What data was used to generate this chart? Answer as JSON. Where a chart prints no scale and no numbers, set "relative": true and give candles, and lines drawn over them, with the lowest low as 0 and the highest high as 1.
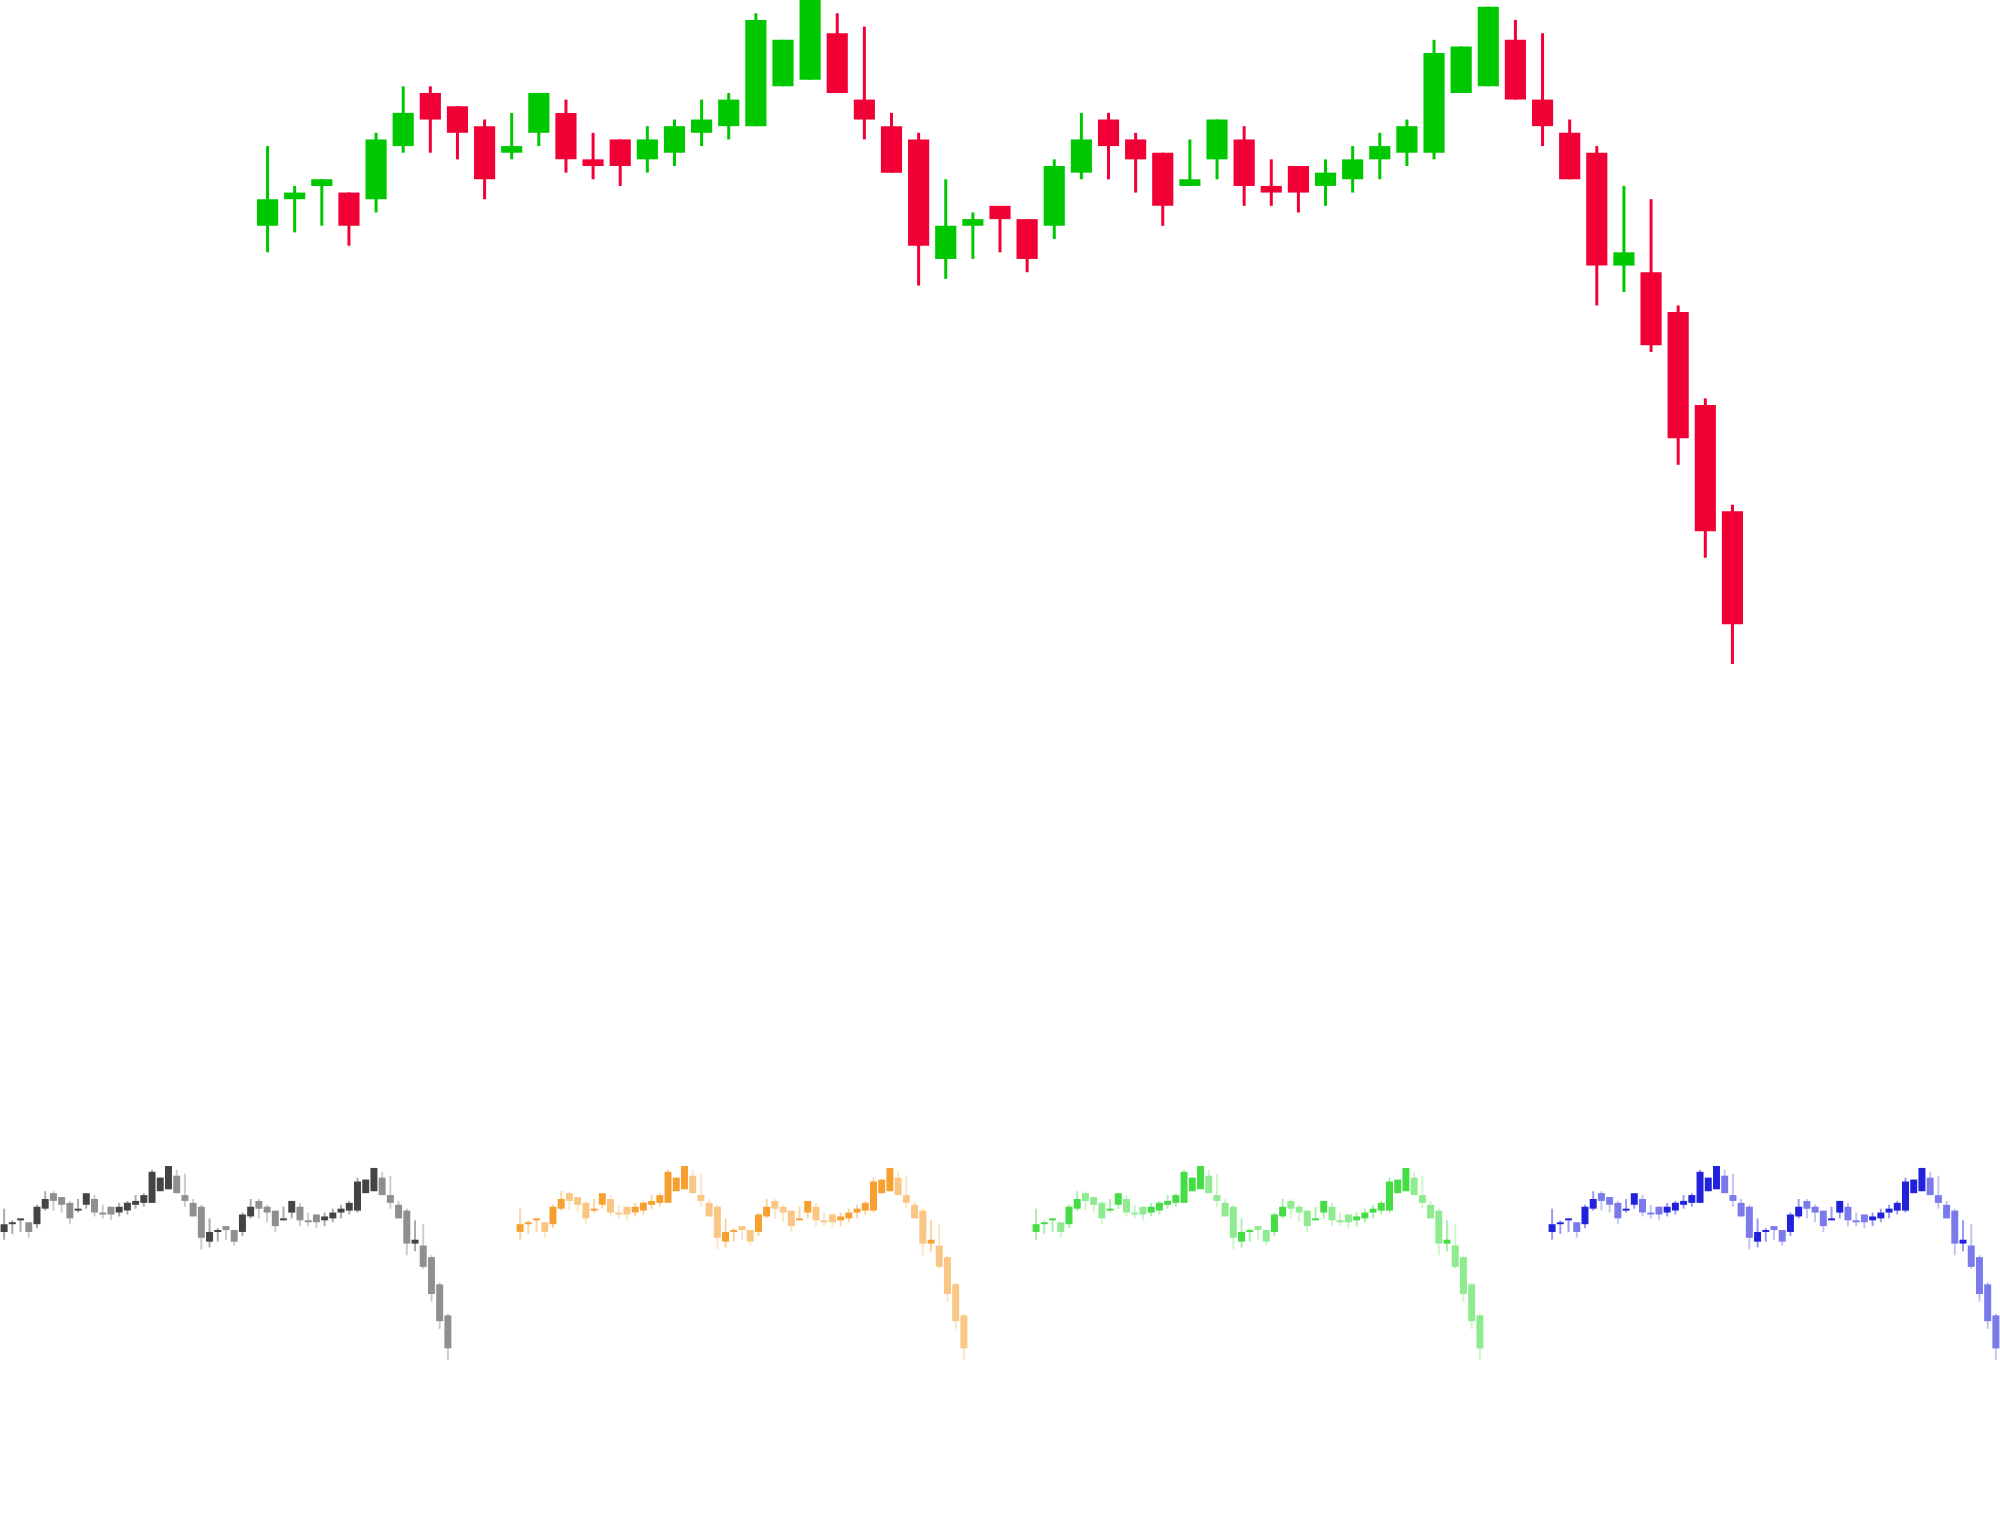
{
  "chart_data": [
    {
      "type": "candlestick",
      "relative": true,
      "categories": [
        null,
        null,
        null,
        null,
        null,
        null,
        null,
        null,
        null,
        null,
        null,
        null,
        null,
        null,
        null,
        null,
        null,
        null,
        null,
        null,
        null,
        null,
        null,
        null,
        null,
        null,
        null,
        null,
        null,
        null,
        null,
        null,
        null,
        null,
        null,
        null,
        null,
        null,
        null,
        null,
        null,
        null,
        null,
        null,
        null,
        null,
        null,
        null,
        null,
        null,
        null,
        null,
        null,
        null,
        null
      ],
      "ohlc": [
        [
          0.66,
          0.78,
          0.62,
          0.7
        ],
        [
          0.7,
          0.72,
          0.65,
          0.71
        ],
        [
          0.72,
          0.73,
          0.66,
          0.73
        ],
        [
          0.71,
          0.71,
          0.63,
          0.66
        ],
        [
          0.7,
          0.8,
          0.68,
          0.79
        ],
        [
          0.78,
          0.87,
          0.77,
          0.83
        ],
        [
          0.86,
          0.87,
          0.77,
          0.82
        ],
        [
          0.84,
          0.84,
          0.76,
          0.8
        ],
        [
          0.81,
          0.82,
          0.7,
          0.73
        ],
        [
          0.77,
          0.83,
          0.76,
          0.78
        ],
        [
          0.8,
          0.86,
          0.78,
          0.86
        ],
        [
          0.83,
          0.85,
          0.74,
          0.76
        ],
        [
          0.76,
          0.8,
          0.73,
          0.75
        ],
        [
          0.79,
          0.79,
          0.72,
          0.75
        ],
        [
          0.76,
          0.81,
          0.74,
          0.79
        ],
        [
          0.77,
          0.82,
          0.75,
          0.81
        ],
        [
          0.8,
          0.85,
          0.78,
          0.82
        ],
        [
          0.81,
          0.86,
          0.79,
          0.85
        ],
        [
          0.81,
          0.98,
          0.81,
          0.97
        ],
        [
          0.87,
          0.94,
          0.87,
          0.94
        ],
        [
          0.88,
          1,
          0.88,
          1
        ],
        [
          0.95,
          0.98,
          0.86,
          0.86
        ],
        [
          0.85,
          0.96,
          0.79,
          0.82
        ],
        [
          0.81,
          0.83,
          0.74,
          0.74
        ],
        [
          0.79,
          0.8,
          0.57,
          0.63
        ],
        [
          0.61,
          0.73,
          0.58,
          0.66
        ],
        [
          0.66,
          0.68,
          0.61,
          0.67
        ],
        [
          0.69,
          0.69,
          0.62,
          0.67
        ],
        [
          0.67,
          0.67,
          0.59,
          0.61
        ],
        [
          0.66,
          0.76,
          0.64,
          0.75
        ],
        [
          0.74,
          0.83,
          0.73,
          0.79
        ],
        [
          0.82,
          0.83,
          0.73,
          0.78
        ],
        [
          0.79,
          0.8,
          0.71,
          0.76
        ],
        [
          0.77,
          0.77,
          0.66,
          0.69
        ],
        [
          0.72,
          0.79,
          0.72,
          0.73
        ],
        [
          0.76,
          0.82,
          0.73,
          0.82
        ],
        [
          0.79,
          0.81,
          0.69,
          0.72
        ],
        [
          0.72,
          0.76,
          0.69,
          0.71
        ],
        [
          0.75,
          0.75,
          0.68,
          0.71
        ],
        [
          0.72,
          0.76,
          0.69,
          0.74
        ],
        [
          0.73,
          0.78,
          0.71,
          0.76
        ],
        [
          0.76,
          0.8,
          0.73,
          0.78
        ],
        [
          0.77,
          0.82,
          0.75,
          0.81
        ],
        [
          0.77,
          0.94,
          0.76,
          0.92
        ],
        [
          0.86,
          0.93,
          0.86,
          0.93
        ],
        [
          0.87,
          0.99,
          0.87,
          0.99
        ],
        [
          0.94,
          0.97,
          0.85,
          0.85
        ],
        [
          0.85,
          0.95,
          0.78,
          0.81
        ],
        [
          0.8,
          0.82,
          0.73,
          0.73
        ],
        [
          0.77,
          0.78,
          0.54,
          0.6
        ],
        [
          0.6,
          0.72,
          0.56,
          0.62
        ],
        [
          0.59,
          0.7,
          0.47,
          0.48
        ],
        [
          0.53,
          0.54,
          0.3,
          0.34
        ],
        [
          0.39,
          0.4,
          0.16,
          0.2
        ],
        [
          0.23,
          0.24,
          0,
          0.06
        ]
      ],
      "colors": [
        "#00c800",
        "#00c800",
        "#00c800",
        "#f00034",
        "#00c800",
        "#00c800",
        "#f00034",
        "#f00034",
        "#f00034",
        "#00c800",
        "#00c800",
        "#f00034",
        "#f00034",
        "#f00034",
        "#00c800",
        "#00c800",
        "#00c800",
        "#00c800",
        "#00c800",
        "#00c800",
        "#00c800",
        "#f00034",
        "#f00034",
        "#f00034",
        "#f00034",
        "#00c800",
        "#00c800",
        "#f00034",
        "#f00034",
        "#00c800",
        "#00c800",
        "#f00034",
        "#f00034",
        "#f00034",
        "#00c800",
        "#00c800",
        "#f00034",
        "#f00034",
        "#f00034",
        "#00c800",
        "#00c800",
        "#00c800",
        "#00c800",
        "#00c800",
        "#00c800",
        "#00c800",
        "#f00034",
        "#f00034",
        "#f00034",
        "#f00034",
        "#00c800",
        "#f00034",
        "#f00034",
        "#f00034",
        "#f00034"
      ]
    },
    {
      "type": "candlestick",
      "relative": true,
      "categories": [
        null,
        null,
        null,
        null,
        null,
        null,
        null,
        null,
        null,
        null,
        null,
        null,
        null,
        null,
        null,
        null,
        null,
        null,
        null,
        null,
        null,
        null,
        null,
        null,
        null,
        null,
        null,
        null,
        null,
        null,
        null,
        null,
        null,
        null,
        null,
        null,
        null,
        null,
        null,
        null,
        null,
        null,
        null,
        null,
        null,
        null,
        null,
        null,
        null,
        null,
        null,
        null,
        null,
        null,
        null
      ],
      "ohlc": [
        [
          0.66,
          0.78,
          0.62,
          0.7
        ],
        [
          0.7,
          0.72,
          0.65,
          0.71
        ],
        [
          0.72,
          0.73,
          0.66,
          0.73
        ],
        [
          0.71,
          0.71,
          0.63,
          0.66
        ],
        [
          0.7,
          0.8,
          0.68,
          0.79
        ],
        [
          0.78,
          0.87,
          0.77,
          0.83
        ],
        [
          0.86,
          0.87,
          0.77,
          0.82
        ],
        [
          0.84,
          0.84,
          0.76,
          0.8
        ],
        [
          0.81,
          0.82,
          0.7,
          0.73
        ],
        [
          0.77,
          0.83,
          0.76,
          0.78
        ],
        [
          0.8,
          0.86,
          0.78,
          0.86
        ],
        [
          0.83,
          0.85,
          0.74,
          0.76
        ],
        [
          0.76,
          0.8,
          0.73,
          0.75
        ],
        [
          0.79,
          0.79,
          0.72,
          0.75
        ],
        [
          0.76,
          0.81,
          0.74,
          0.79
        ],
        [
          0.77,
          0.82,
          0.75,
          0.81
        ],
        [
          0.8,
          0.85,
          0.78,
          0.82
        ],
        [
          0.81,
          0.86,
          0.79,
          0.85
        ],
        [
          0.81,
          0.98,
          0.81,
          0.97
        ],
        [
          0.87,
          0.94,
          0.87,
          0.94
        ],
        [
          0.88,
          1,
          0.88,
          1
        ],
        [
          0.95,
          0.98,
          0.86,
          0.86
        ],
        [
          0.85,
          0.96,
          0.79,
          0.82
        ],
        [
          0.81,
          0.83,
          0.74,
          0.74
        ],
        [
          0.79,
          0.8,
          0.57,
          0.63
        ],
        [
          0.61,
          0.73,
          0.58,
          0.66
        ],
        [
          0.66,
          0.68,
          0.61,
          0.67
        ],
        [
          0.69,
          0.69,
          0.62,
          0.67
        ],
        [
          0.67,
          0.67,
          0.59,
          0.61
        ],
        [
          0.66,
          0.76,
          0.64,
          0.75
        ],
        [
          0.74,
          0.83,
          0.73,
          0.79
        ],
        [
          0.82,
          0.83,
          0.73,
          0.78
        ],
        [
          0.79,
          0.8,
          0.71,
          0.76
        ],
        [
          0.77,
          0.77,
          0.66,
          0.69
        ],
        [
          0.72,
          0.79,
          0.72,
          0.73
        ],
        [
          0.76,
          0.82,
          0.73,
          0.82
        ],
        [
          0.79,
          0.81,
          0.69,
          0.72
        ],
        [
          0.72,
          0.76,
          0.69,
          0.71
        ],
        [
          0.75,
          0.75,
          0.68,
          0.71
        ],
        [
          0.72,
          0.76,
          0.69,
          0.74
        ],
        [
          0.73,
          0.78,
          0.71,
          0.76
        ],
        [
          0.76,
          0.8,
          0.73,
          0.78
        ],
        [
          0.77,
          0.82,
          0.75,
          0.81
        ],
        [
          0.77,
          0.94,
          0.76,
          0.92
        ],
        [
          0.86,
          0.93,
          0.86,
          0.93
        ],
        [
          0.87,
          0.99,
          0.87,
          0.99
        ],
        [
          0.94,
          0.97,
          0.85,
          0.85
        ],
        [
          0.85,
          0.95,
          0.78,
          0.81
        ],
        [
          0.8,
          0.82,
          0.73,
          0.73
        ],
        [
          0.77,
          0.78,
          0.54,
          0.6
        ],
        [
          0.6,
          0.72,
          0.56,
          0.62
        ],
        [
          0.59,
          0.7,
          0.47,
          0.48
        ],
        [
          0.53,
          0.54,
          0.3,
          0.34
        ],
        [
          0.39,
          0.4,
          0.16,
          0.2
        ],
        [
          0.23,
          0.24,
          0,
          0.06
        ]
      ],
      "colors": [
        "#444444",
        "#444444",
        "#444444",
        "#8f8f8f",
        "#444444",
        "#444444",
        "#8f8f8f",
        "#8f8f8f",
        "#8f8f8f",
        "#444444",
        "#444444",
        "#8f8f8f",
        "#8f8f8f",
        "#8f8f8f",
        "#444444",
        "#444444",
        "#444444",
        "#444444",
        "#444444",
        "#444444",
        "#444444",
        "#8f8f8f",
        "#8f8f8f",
        "#8f8f8f",
        "#8f8f8f",
        "#444444",
        "#444444",
        "#8f8f8f",
        "#8f8f8f",
        "#444444",
        "#444444",
        "#8f8f8f",
        "#8f8f8f",
        "#8f8f8f",
        "#444444",
        "#444444",
        "#8f8f8f",
        "#8f8f8f",
        "#8f8f8f",
        "#444444",
        "#444444",
        "#444444",
        "#444444",
        "#444444",
        "#444444",
        "#444444",
        "#8f8f8f",
        "#8f8f8f",
        "#8f8f8f",
        "#8f8f8f",
        "#444444",
        "#8f8f8f",
        "#8f8f8f",
        "#8f8f8f",
        "#8f8f8f"
      ]
    },
    {
      "type": "candlestick",
      "relative": true,
      "categories": [
        null,
        null,
        null,
        null,
        null,
        null,
        null,
        null,
        null,
        null,
        null,
        null,
        null,
        null,
        null,
        null,
        null,
        null,
        null,
        null,
        null,
        null,
        null,
        null,
        null,
        null,
        null,
        null,
        null,
        null,
        null,
        null,
        null,
        null,
        null,
        null,
        null,
        null,
        null,
        null,
        null,
        null,
        null,
        null,
        null,
        null,
        null,
        null,
        null,
        null,
        null,
        null,
        null,
        null,
        null
      ],
      "ohlc": [
        [
          0.66,
          0.78,
          0.62,
          0.7
        ],
        [
          0.7,
          0.72,
          0.65,
          0.71
        ],
        [
          0.72,
          0.73,
          0.66,
          0.73
        ],
        [
          0.71,
          0.71,
          0.63,
          0.66
        ],
        [
          0.7,
          0.8,
          0.68,
          0.79
        ],
        [
          0.78,
          0.87,
          0.77,
          0.83
        ],
        [
          0.86,
          0.87,
          0.77,
          0.82
        ],
        [
          0.84,
          0.84,
          0.76,
          0.8
        ],
        [
          0.81,
          0.82,
          0.7,
          0.73
        ],
        [
          0.77,
          0.83,
          0.76,
          0.78
        ],
        [
          0.8,
          0.86,
          0.78,
          0.86
        ],
        [
          0.83,
          0.85,
          0.74,
          0.76
        ],
        [
          0.76,
          0.8,
          0.73,
          0.75
        ],
        [
          0.79,
          0.79,
          0.72,
          0.75
        ],
        [
          0.76,
          0.81,
          0.74,
          0.79
        ],
        [
          0.77,
          0.82,
          0.75,
          0.81
        ],
        [
          0.8,
          0.85,
          0.78,
          0.82
        ],
        [
          0.81,
          0.86,
          0.79,
          0.85
        ],
        [
          0.81,
          0.98,
          0.81,
          0.97
        ],
        [
          0.87,
          0.94,
          0.87,
          0.94
        ],
        [
          0.88,
          1,
          0.88,
          1
        ],
        [
          0.95,
          0.98,
          0.86,
          0.86
        ],
        [
          0.85,
          0.96,
          0.79,
          0.82
        ],
        [
          0.81,
          0.83,
          0.74,
          0.74
        ],
        [
          0.79,
          0.8,
          0.57,
          0.63
        ],
        [
          0.61,
          0.73,
          0.58,
          0.66
        ],
        [
          0.66,
          0.68,
          0.61,
          0.67
        ],
        [
          0.69,
          0.69,
          0.62,
          0.67
        ],
        [
          0.67,
          0.67,
          0.59,
          0.61
        ],
        [
          0.66,
          0.76,
          0.64,
          0.75
        ],
        [
          0.74,
          0.83,
          0.73,
          0.79
        ],
        [
          0.82,
          0.83,
          0.73,
          0.78
        ],
        [
          0.79,
          0.8,
          0.71,
          0.76
        ],
        [
          0.77,
          0.77,
          0.66,
          0.69
        ],
        [
          0.72,
          0.79,
          0.72,
          0.73
        ],
        [
          0.76,
          0.82,
          0.73,
          0.82
        ],
        [
          0.79,
          0.81,
          0.69,
          0.72
        ],
        [
          0.72,
          0.76,
          0.69,
          0.71
        ],
        [
          0.75,
          0.75,
          0.68,
          0.71
        ],
        [
          0.72,
          0.76,
          0.69,
          0.74
        ],
        [
          0.73,
          0.78,
          0.71,
          0.76
        ],
        [
          0.76,
          0.8,
          0.73,
          0.78
        ],
        [
          0.77,
          0.82,
          0.75,
          0.81
        ],
        [
          0.77,
          0.94,
          0.76,
          0.92
        ],
        [
          0.86,
          0.93,
          0.86,
          0.93
        ],
        [
          0.87,
          0.99,
          0.87,
          0.99
        ],
        [
          0.94,
          0.97,
          0.85,
          0.85
        ],
        [
          0.85,
          0.95,
          0.78,
          0.81
        ],
        [
          0.8,
          0.82,
          0.73,
          0.73
        ],
        [
          0.77,
          0.78,
          0.54,
          0.6
        ],
        [
          0.6,
          0.72,
          0.56,
          0.62
        ],
        [
          0.59,
          0.7,
          0.47,
          0.48
        ],
        [
          0.53,
          0.54,
          0.3,
          0.34
        ],
        [
          0.39,
          0.4,
          0.16,
          0.2
        ],
        [
          0.23,
          0.24,
          0,
          0.06
        ]
      ],
      "colors": [
        "#f7a030",
        "#f7a030",
        "#f7a030",
        "#fac683",
        "#f7a030",
        "#f7a030",
        "#fac683",
        "#fac683",
        "#fac683",
        "#f7a030",
        "#f7a030",
        "#fac683",
        "#fac683",
        "#fac683",
        "#f7a030",
        "#f7a030",
        "#f7a030",
        "#f7a030",
        "#f7a030",
        "#f7a030",
        "#f7a030",
        "#fac683",
        "#fac683",
        "#fac683",
        "#fac683",
        "#f7a030",
        "#f7a030",
        "#fac683",
        "#fac683",
        "#f7a030",
        "#f7a030",
        "#fac683",
        "#fac683",
        "#fac683",
        "#f7a030",
        "#f7a030",
        "#fac683",
        "#fac683",
        "#fac683",
        "#f7a030",
        "#f7a030",
        "#f7a030",
        "#f7a030",
        "#f7a030",
        "#f7a030",
        "#f7a030",
        "#fac683",
        "#fac683",
        "#fac683",
        "#fac683",
        "#f7a030",
        "#fac683",
        "#fac683",
        "#fac683",
        "#fac683"
      ]
    },
    {
      "type": "candlestick",
      "relative": true,
      "categories": [
        null,
        null,
        null,
        null,
        null,
        null,
        null,
        null,
        null,
        null,
        null,
        null,
        null,
        null,
        null,
        null,
        null,
        null,
        null,
        null,
        null,
        null,
        null,
        null,
        null,
        null,
        null,
        null,
        null,
        null,
        null,
        null,
        null,
        null,
        null,
        null,
        null,
        null,
        null,
        null,
        null,
        null,
        null,
        null,
        null,
        null,
        null,
        null,
        null,
        null,
        null,
        null,
        null,
        null,
        null
      ],
      "ohlc": [
        [
          0.66,
          0.78,
          0.62,
          0.7
        ],
        [
          0.7,
          0.72,
          0.65,
          0.71
        ],
        [
          0.72,
          0.73,
          0.66,
          0.73
        ],
        [
          0.71,
          0.71,
          0.63,
          0.66
        ],
        [
          0.7,
          0.8,
          0.68,
          0.79
        ],
        [
          0.78,
          0.87,
          0.77,
          0.83
        ],
        [
          0.86,
          0.87,
          0.77,
          0.82
        ],
        [
          0.84,
          0.84,
          0.76,
          0.8
        ],
        [
          0.81,
          0.82,
          0.7,
          0.73
        ],
        [
          0.77,
          0.83,
          0.76,
          0.78
        ],
        [
          0.8,
          0.86,
          0.78,
          0.86
        ],
        [
          0.83,
          0.85,
          0.74,
          0.76
        ],
        [
          0.76,
          0.8,
          0.73,
          0.75
        ],
        [
          0.79,
          0.79,
          0.72,
          0.75
        ],
        [
          0.76,
          0.81,
          0.74,
          0.79
        ],
        [
          0.77,
          0.82,
          0.75,
          0.81
        ],
        [
          0.8,
          0.85,
          0.78,
          0.82
        ],
        [
          0.81,
          0.86,
          0.79,
          0.85
        ],
        [
          0.81,
          0.98,
          0.81,
          0.97
        ],
        [
          0.87,
          0.94,
          0.87,
          0.94
        ],
        [
          0.88,
          1,
          0.88,
          1
        ],
        [
          0.95,
          0.98,
          0.86,
          0.86
        ],
        [
          0.85,
          0.96,
          0.79,
          0.82
        ],
        [
          0.81,
          0.83,
          0.74,
          0.74
        ],
        [
          0.79,
          0.8,
          0.57,
          0.63
        ],
        [
          0.61,
          0.73,
          0.58,
          0.66
        ],
        [
          0.66,
          0.68,
          0.61,
          0.67
        ],
        [
          0.69,
          0.69,
          0.62,
          0.67
        ],
        [
          0.67,
          0.67,
          0.59,
          0.61
        ],
        [
          0.66,
          0.76,
          0.64,
          0.75
        ],
        [
          0.74,
          0.83,
          0.73,
          0.79
        ],
        [
          0.82,
          0.83,
          0.73,
          0.78
        ],
        [
          0.79,
          0.8,
          0.71,
          0.76
        ],
        [
          0.77,
          0.77,
          0.66,
          0.69
        ],
        [
          0.72,
          0.79,
          0.72,
          0.73
        ],
        [
          0.76,
          0.82,
          0.73,
          0.82
        ],
        [
          0.79,
          0.81,
          0.69,
          0.72
        ],
        [
          0.72,
          0.76,
          0.69,
          0.71
        ],
        [
          0.75,
          0.75,
          0.68,
          0.71
        ],
        [
          0.72,
          0.76,
          0.69,
          0.74
        ],
        [
          0.73,
          0.78,
          0.71,
          0.76
        ],
        [
          0.76,
          0.8,
          0.73,
          0.78
        ],
        [
          0.77,
          0.82,
          0.75,
          0.81
        ],
        [
          0.77,
          0.94,
          0.76,
          0.92
        ],
        [
          0.86,
          0.93,
          0.86,
          0.93
        ],
        [
          0.87,
          0.99,
          0.87,
          0.99
        ],
        [
          0.94,
          0.97,
          0.85,
          0.85
        ],
        [
          0.85,
          0.95,
          0.78,
          0.81
        ],
        [
          0.8,
          0.82,
          0.73,
          0.73
        ],
        [
          0.77,
          0.78,
          0.54,
          0.6
        ],
        [
          0.6,
          0.72,
          0.56,
          0.62
        ],
        [
          0.59,
          0.7,
          0.47,
          0.48
        ],
        [
          0.53,
          0.54,
          0.3,
          0.34
        ],
        [
          0.39,
          0.4,
          0.16,
          0.2
        ],
        [
          0.23,
          0.24,
          0,
          0.06
        ]
      ],
      "colors": [
        "#44dd44",
        "#44dd44",
        "#44dd44",
        "#8feb8f",
        "#44dd44",
        "#44dd44",
        "#8feb8f",
        "#8feb8f",
        "#8feb8f",
        "#44dd44",
        "#44dd44",
        "#8feb8f",
        "#8feb8f",
        "#8feb8f",
        "#44dd44",
        "#44dd44",
        "#44dd44",
        "#44dd44",
        "#44dd44",
        "#44dd44",
        "#44dd44",
        "#8feb8f",
        "#8feb8f",
        "#8feb8f",
        "#8feb8f",
        "#44dd44",
        "#44dd44",
        "#8feb8f",
        "#8feb8f",
        "#44dd44",
        "#44dd44",
        "#8feb8f",
        "#8feb8f",
        "#8feb8f",
        "#44dd44",
        "#44dd44",
        "#8feb8f",
        "#8feb8f",
        "#8feb8f",
        "#44dd44",
        "#44dd44",
        "#44dd44",
        "#44dd44",
        "#44dd44",
        "#44dd44",
        "#44dd44",
        "#8feb8f",
        "#8feb8f",
        "#8feb8f",
        "#8feb8f",
        "#44dd44",
        "#8feb8f",
        "#8feb8f",
        "#8feb8f",
        "#8feb8f"
      ]
    },
    {
      "type": "candlestick",
      "relative": true,
      "categories": [
        null,
        null,
        null,
        null,
        null,
        null,
        null,
        null,
        null,
        null,
        null,
        null,
        null,
        null,
        null,
        null,
        null,
        null,
        null,
        null,
        null,
        null,
        null,
        null,
        null,
        null,
        null,
        null,
        null,
        null,
        null,
        null,
        null,
        null,
        null,
        null,
        null,
        null,
        null,
        null,
        null,
        null,
        null,
        null,
        null,
        null,
        null,
        null,
        null,
        null,
        null,
        null,
        null,
        null,
        null
      ],
      "ohlc": [
        [
          0.66,
          0.78,
          0.62,
          0.7
        ],
        [
          0.7,
          0.72,
          0.65,
          0.71
        ],
        [
          0.72,
          0.73,
          0.66,
          0.73
        ],
        [
          0.71,
          0.71,
          0.63,
          0.66
        ],
        [
          0.7,
          0.8,
          0.68,
          0.79
        ],
        [
          0.78,
          0.87,
          0.77,
          0.83
        ],
        [
          0.86,
          0.87,
          0.77,
          0.82
        ],
        [
          0.84,
          0.84,
          0.76,
          0.8
        ],
        [
          0.81,
          0.82,
          0.7,
          0.73
        ],
        [
          0.77,
          0.83,
          0.76,
          0.78
        ],
        [
          0.8,
          0.86,
          0.78,
          0.86
        ],
        [
          0.83,
          0.85,
          0.74,
          0.76
        ],
        [
          0.76,
          0.8,
          0.73,
          0.75
        ],
        [
          0.79,
          0.79,
          0.72,
          0.75
        ],
        [
          0.76,
          0.81,
          0.74,
          0.79
        ],
        [
          0.77,
          0.82,
          0.75,
          0.81
        ],
        [
          0.8,
          0.85,
          0.78,
          0.82
        ],
        [
          0.81,
          0.86,
          0.79,
          0.85
        ],
        [
          0.81,
          0.98,
          0.81,
          0.97
        ],
        [
          0.87,
          0.94,
          0.87,
          0.94
        ],
        [
          0.88,
          1,
          0.88,
          1
        ],
        [
          0.95,
          0.98,
          0.86,
          0.86
        ],
        [
          0.85,
          0.96,
          0.79,
          0.82
        ],
        [
          0.81,
          0.83,
          0.74,
          0.74
        ],
        [
          0.79,
          0.8,
          0.57,
          0.63
        ],
        [
          0.61,
          0.73,
          0.58,
          0.66
        ],
        [
          0.66,
          0.68,
          0.61,
          0.67
        ],
        [
          0.69,
          0.69,
          0.62,
          0.67
        ],
        [
          0.67,
          0.67,
          0.59,
          0.61
        ],
        [
          0.66,
          0.76,
          0.64,
          0.75
        ],
        [
          0.74,
          0.83,
          0.73,
          0.79
        ],
        [
          0.82,
          0.83,
          0.73,
          0.78
        ],
        [
          0.79,
          0.8,
          0.71,
          0.76
        ],
        [
          0.77,
          0.77,
          0.66,
          0.69
        ],
        [
          0.72,
          0.79,
          0.72,
          0.73
        ],
        [
          0.76,
          0.82,
          0.73,
          0.82
        ],
        [
          0.79,
          0.81,
          0.69,
          0.72
        ],
        [
          0.72,
          0.76,
          0.69,
          0.71
        ],
        [
          0.75,
          0.75,
          0.68,
          0.71
        ],
        [
          0.72,
          0.76,
          0.69,
          0.74
        ],
        [
          0.73,
          0.78,
          0.71,
          0.76
        ],
        [
          0.76,
          0.8,
          0.73,
          0.78
        ],
        [
          0.77,
          0.82,
          0.75,
          0.81
        ],
        [
          0.77,
          0.94,
          0.76,
          0.92
        ],
        [
          0.86,
          0.93,
          0.86,
          0.93
        ],
        [
          0.87,
          0.99,
          0.87,
          0.99
        ],
        [
          0.94,
          0.97,
          0.85,
          0.85
        ],
        [
          0.85,
          0.95,
          0.78,
          0.81
        ],
        [
          0.8,
          0.82,
          0.73,
          0.73
        ],
        [
          0.77,
          0.78,
          0.54,
          0.6
        ],
        [
          0.6,
          0.72,
          0.56,
          0.62
        ],
        [
          0.59,
          0.7,
          0.47,
          0.48
        ],
        [
          0.53,
          0.54,
          0.3,
          0.34
        ],
        [
          0.39,
          0.4,
          0.16,
          0.2
        ],
        [
          0.23,
          0.24,
          0,
          0.06
        ]
      ],
      "colors": [
        "#2222dd",
        "#2222dd",
        "#2222dd",
        "#7a7aeb",
        "#2222dd",
        "#2222dd",
        "#7a7aeb",
        "#7a7aeb",
        "#7a7aeb",
        "#2222dd",
        "#2222dd",
        "#7a7aeb",
        "#7a7aeb",
        "#7a7aeb",
        "#2222dd",
        "#2222dd",
        "#2222dd",
        "#2222dd",
        "#2222dd",
        "#2222dd",
        "#2222dd",
        "#7a7aeb",
        "#7a7aeb",
        "#7a7aeb",
        "#7a7aeb",
        "#2222dd",
        "#2222dd",
        "#7a7aeb",
        "#7a7aeb",
        "#2222dd",
        "#2222dd",
        "#7a7aeb",
        "#7a7aeb",
        "#7a7aeb",
        "#2222dd",
        "#2222dd",
        "#7a7aeb",
        "#7a7aeb",
        "#7a7aeb",
        "#2222dd",
        "#2222dd",
        "#2222dd",
        "#2222dd",
        "#2222dd",
        "#2222dd",
        "#2222dd",
        "#7a7aeb",
        "#7a7aeb",
        "#7a7aeb",
        "#7a7aeb",
        "#2222dd",
        "#7a7aeb",
        "#7a7aeb",
        "#7a7aeb",
        "#7a7aeb"
      ]
    }
  ]
}
